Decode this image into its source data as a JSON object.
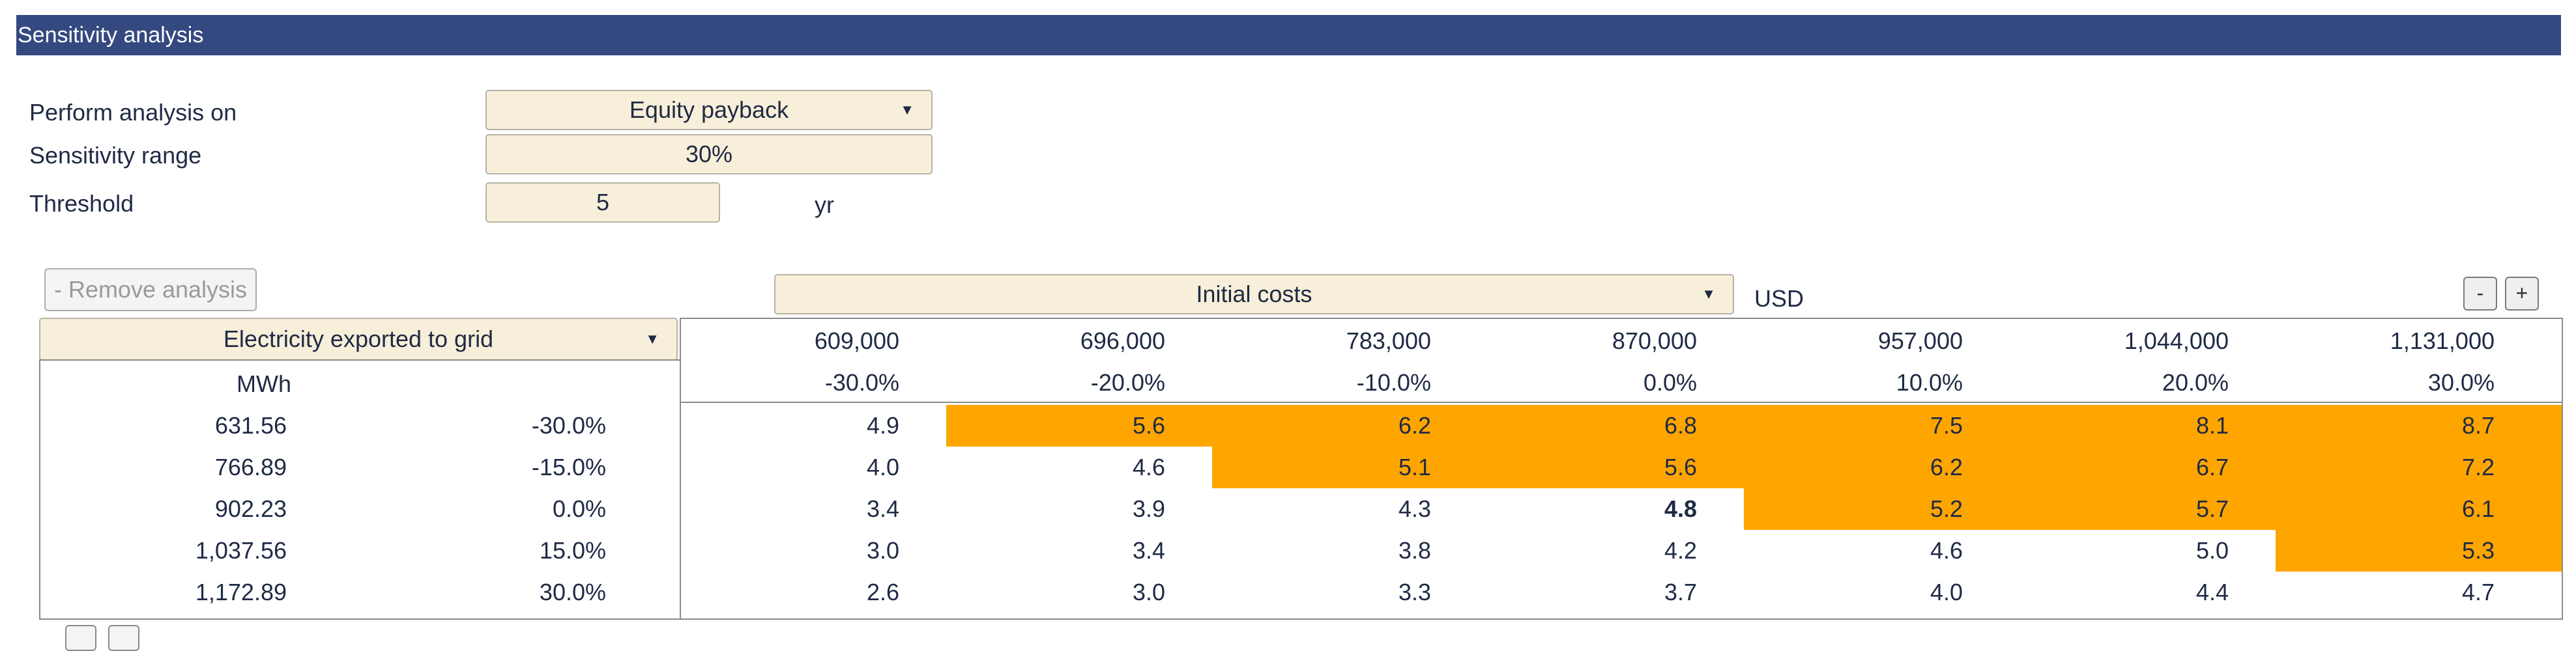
{
  "section_title": "Sensitivity analysis",
  "settings": {
    "analysis_label": "Perform analysis on",
    "analysis_value": "Equity payback",
    "range_label": "Sensitivity range",
    "range_value": "30%",
    "threshold_label": "Threshold",
    "threshold_value": "5",
    "threshold_unit": "yr"
  },
  "remove_button": "- Remove analysis",
  "col_param": {
    "value": "Initial costs",
    "unit": "USD"
  },
  "row_param": {
    "value": "Electricity exported to grid",
    "unit": "MWh"
  },
  "zoom": {
    "minus": "-",
    "plus": "+"
  },
  "col_values": [
    "609,000",
    "696,000",
    "783,000",
    "870,000",
    "957,000",
    "1,044,000",
    "1,131,000"
  ],
  "col_pcts": [
    "-30.0%",
    "-20.0%",
    "-10.0%",
    "0.0%",
    "10.0%",
    "20.0%",
    "30.0%"
  ],
  "rows": [
    {
      "value": "631.56",
      "pct": "-30.0%",
      "cells": [
        "4.9",
        "5.6",
        "6.2",
        "6.8",
        "7.5",
        "8.1",
        "8.7"
      ]
    },
    {
      "value": "766.89",
      "pct": "-15.0%",
      "cells": [
        "4.0",
        "4.6",
        "5.1",
        "5.6",
        "6.2",
        "6.7",
        "7.2"
      ]
    },
    {
      "value": "902.23",
      "pct": "0.0%",
      "cells": [
        "3.4",
        "3.9",
        "4.3",
        "4.8",
        "5.2",
        "5.7",
        "6.1"
      ]
    },
    {
      "value": "1,037.56",
      "pct": "15.0%",
      "cells": [
        "3.0",
        "3.4",
        "3.8",
        "4.2",
        "4.6",
        "5.0",
        "5.3"
      ]
    },
    {
      "value": "1,172.89",
      "pct": "30.0%",
      "cells": [
        "2.6",
        "3.0",
        "3.3",
        "3.7",
        "4.0",
        "4.4",
        "4.7"
      ]
    }
  ],
  "highlight_color": "#ffa500",
  "header_color": "#34497f"
}
